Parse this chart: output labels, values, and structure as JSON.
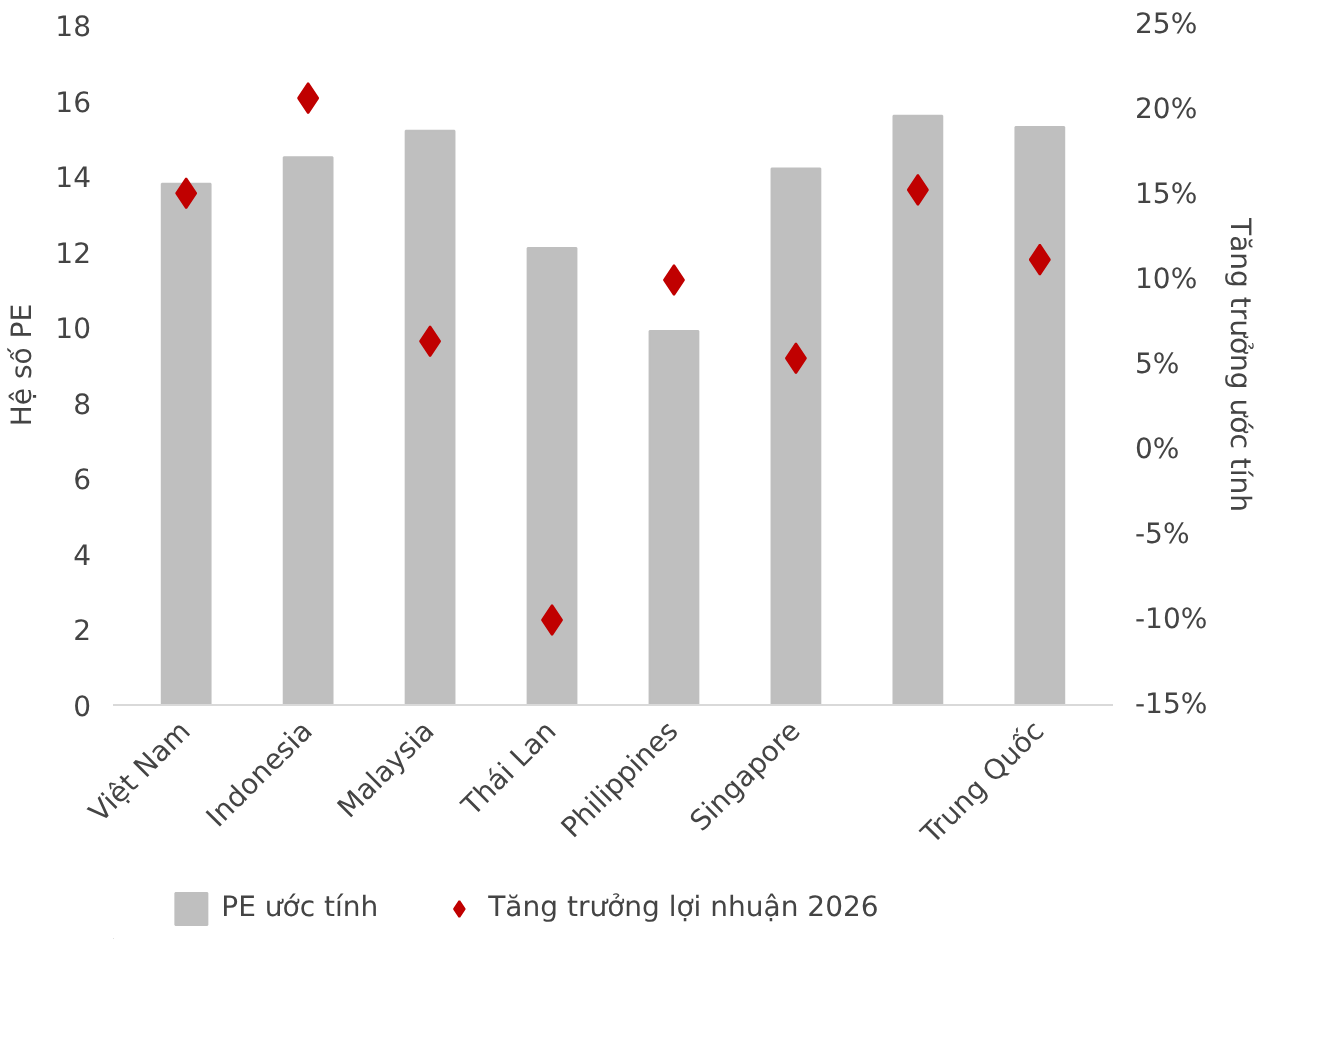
{
  "chart_data": {
    "type": "bar",
    "xlabel": null,
    "ylabel": "Hệ số PE",
    "y2label": "Tăng trưởng ước tính",
    "categories": [
      "Việt Nam",
      "Indonesia",
      "Malaysia",
      "Thái Lan",
      "Philippines",
      "Singapore",
      null,
      "Trung Quốc"
    ],
    "series": [
      {
        "name": "PE ước tính",
        "type": "bar",
        "color": "#bfbfbf",
        "values": [
          13.8,
          14.5,
          15.2,
          12.1,
          9.9,
          14.2,
          15.6,
          15.3
        ]
      },
      {
        "name": "Tăng trưởng lợi nhuận 2026",
        "type": "scatter",
        "axis": "y2",
        "marker": "diamond",
        "color": "#c00000",
        "values": [
          15.1,
          20.7,
          6.4,
          -10.0,
          10.0,
          5.4,
          15.3,
          11.2
        ]
      }
    ],
    "ylim": [
      0,
      18
    ],
    "yticks": [
      0,
      2,
      4,
      6,
      8,
      10,
      12,
      14,
      16,
      18
    ],
    "y2lim": [
      -15,
      25
    ],
    "y2ticks": [
      {
        "value": -15,
        "label": "-15%"
      },
      {
        "value": -10,
        "label": "-10%"
      },
      {
        "value": -5,
        "label": "-5%"
      },
      {
        "value": 0,
        "label": "0%"
      },
      {
        "value": 5,
        "label": "5%"
      },
      {
        "value": 10,
        "label": "10%"
      },
      {
        "value": 15,
        "label": "15%"
      },
      {
        "value": 20,
        "label": "20%"
      },
      {
        "value": 25,
        "label": "25%"
      }
    ],
    "grid": false,
    "legend": "bottom"
  }
}
